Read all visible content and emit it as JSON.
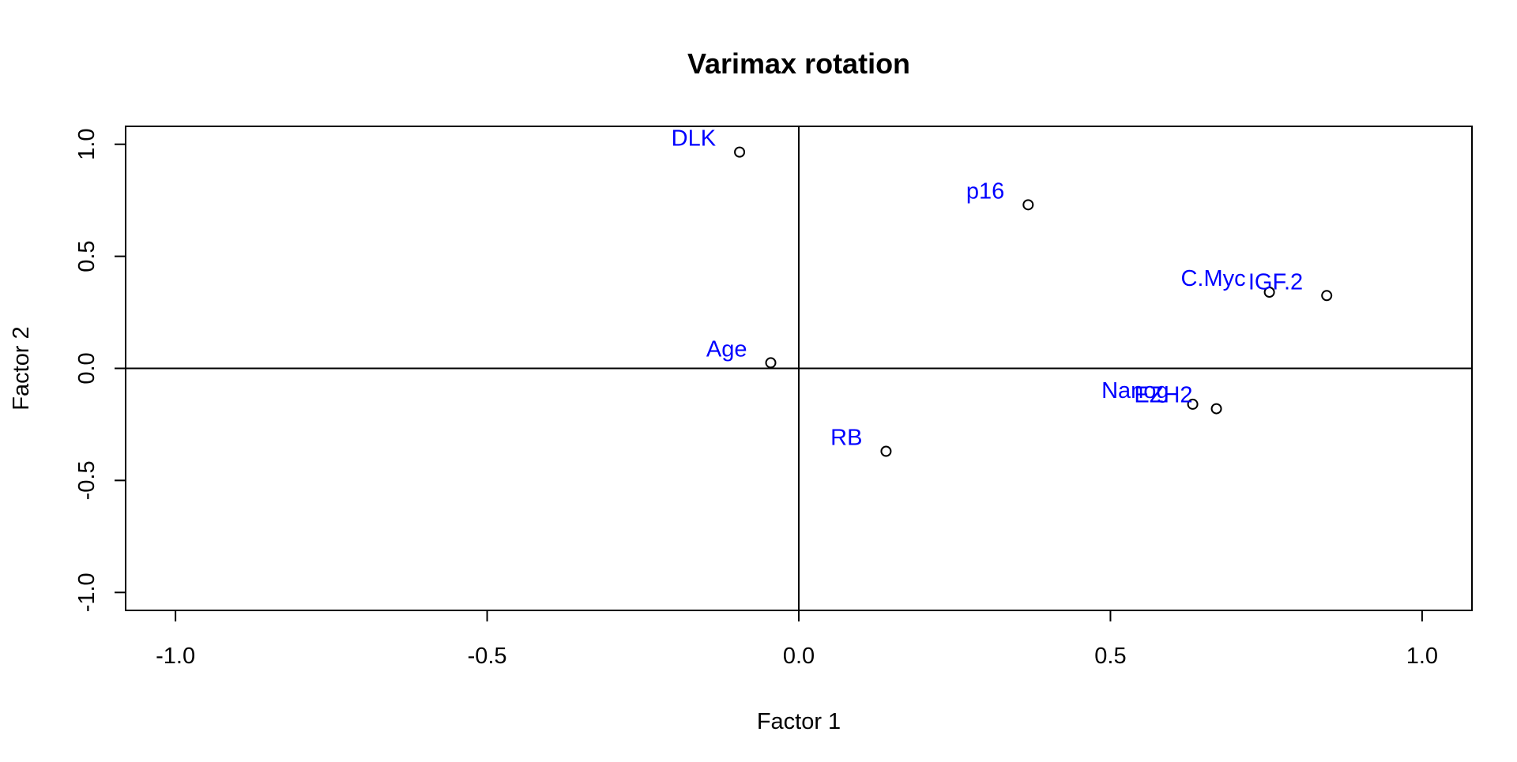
{
  "chart_data": {
    "type": "scatter",
    "title": "Varimax rotation",
    "xlabel": "Factor 1",
    "ylabel": "Factor 2",
    "xlim": [
      -1.08,
      1.08
    ],
    "ylim": [
      -1.08,
      1.08
    ],
    "x_ticks": [
      -1.0,
      -0.5,
      0.0,
      0.5,
      1.0
    ],
    "x_tick_labels": [
      "-1.0",
      "-0.5",
      "0.0",
      "0.5",
      "1.0"
    ],
    "y_ticks": [
      -1.0,
      -0.5,
      0.0,
      0.5,
      1.0
    ],
    "y_tick_labels": [
      "-1.0",
      "-0.5",
      "0.0",
      "0.5",
      "1.0"
    ],
    "reference_lines": {
      "x": 0,
      "y": 0
    },
    "grid": false,
    "label_color": "#0000ff",
    "point_color": "#000000",
    "points": [
      {
        "label": "DLK",
        "x": -0.095,
        "y": 0.965
      },
      {
        "label": "p16",
        "x": 0.368,
        "y": 0.73
      },
      {
        "label": "C.Myc",
        "x": 0.755,
        "y": 0.34
      },
      {
        "label": "IGF.2",
        "x": 0.847,
        "y": 0.325
      },
      {
        "label": "Age",
        "x": -0.045,
        "y": 0.025
      },
      {
        "label": "Nanog",
        "x": 0.632,
        "y": -0.16
      },
      {
        "label": "EZH2",
        "x": 0.67,
        "y": -0.18
      },
      {
        "label": "RB",
        "x": 0.14,
        "y": -0.37
      }
    ]
  }
}
